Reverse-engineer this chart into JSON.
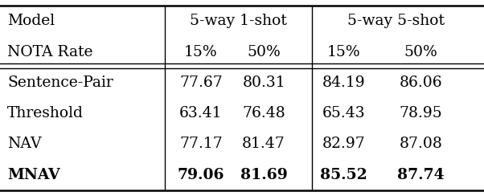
{
  "rows": [
    {
      "model": "Sentence-Pair",
      "bold": false,
      "values": [
        "77.67",
        "80.31",
        "84.19",
        "86.06"
      ]
    },
    {
      "model": "Threshold",
      "bold": false,
      "values": [
        "63.41",
        "76.48",
        "65.43",
        "78.95"
      ]
    },
    {
      "model": "NAV",
      "bold": false,
      "values": [
        "77.17",
        "81.47",
        "82.97",
        "87.08"
      ]
    },
    {
      "model": "MNAV",
      "bold": true,
      "values": [
        "79.06",
        "81.69",
        "85.52",
        "87.74"
      ]
    }
  ],
  "header_line1_left": "Model",
  "header_line2_left": "NOTA Rate",
  "header_line1_g1": "5-way 1-shot",
  "header_line1_g2": "5-way 5-shot",
  "header_line2_cols": [
    "15%",
    "50%",
    "15%",
    "50%"
  ],
  "background_color": "#ffffff",
  "font_size": 13.5
}
